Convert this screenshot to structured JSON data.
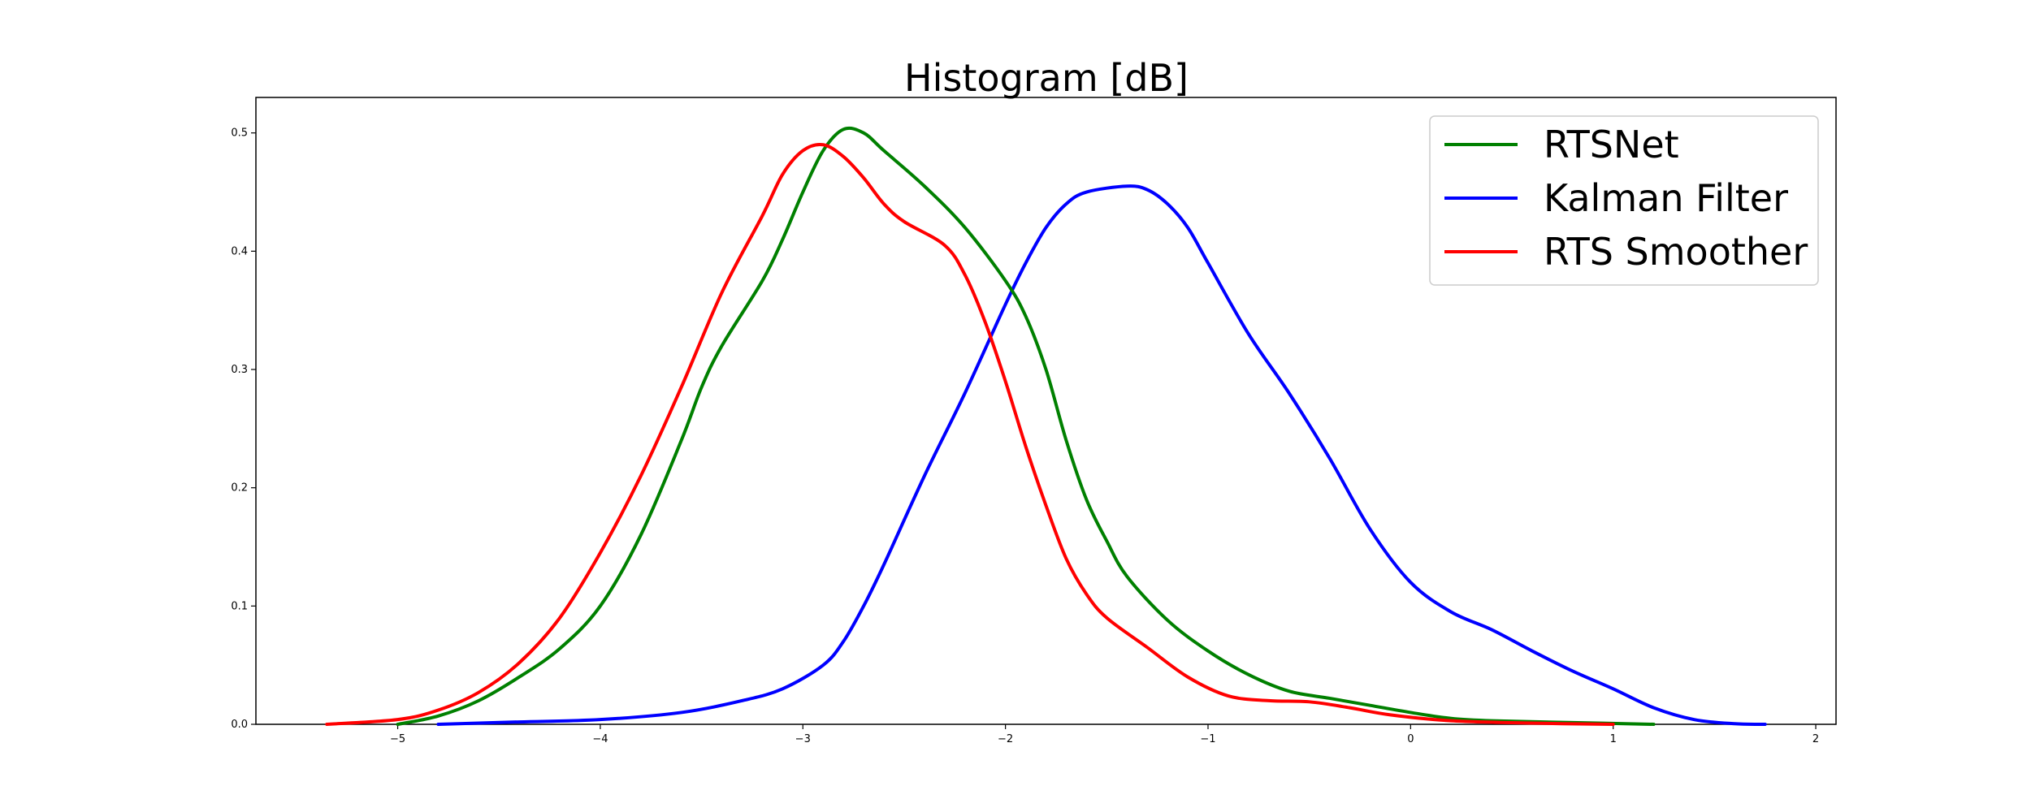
{
  "chart_data": {
    "type": "line",
    "title": "Histogram [dB]",
    "xlabel": "",
    "ylabel": "",
    "xlim": [
      -5.7,
      2.1
    ],
    "ylim": [
      0,
      0.53
    ],
    "x_ticks": [
      -5,
      -4,
      -3,
      -2,
      -1,
      0,
      1,
      2
    ],
    "x_tick_labels": [
      "−5",
      "−4",
      "−3",
      "−2",
      "−1",
      "0",
      "1",
      "2"
    ],
    "y_ticks": [
      0.0,
      0.1,
      0.2,
      0.3,
      0.4,
      0.5
    ],
    "y_tick_labels": [
      "0.0",
      "0.1",
      "0.2",
      "0.3",
      "0.4",
      "0.5"
    ],
    "grid": false,
    "legend_position": "top-right",
    "series": [
      {
        "name": "RTSNet",
        "color": "#008000",
        "points": [
          [
            -5.0,
            0.0
          ],
          [
            -4.8,
            0.007
          ],
          [
            -4.6,
            0.02
          ],
          [
            -4.4,
            0.04
          ],
          [
            -4.2,
            0.064
          ],
          [
            -4.0,
            0.1
          ],
          [
            -3.8,
            0.16
          ],
          [
            -3.6,
            0.24
          ],
          [
            -3.5,
            0.285
          ],
          [
            -3.4,
            0.32
          ],
          [
            -3.2,
            0.375
          ],
          [
            -3.1,
            0.41
          ],
          [
            -3.0,
            0.45
          ],
          [
            -2.9,
            0.485
          ],
          [
            -2.8,
            0.503
          ],
          [
            -2.7,
            0.5
          ],
          [
            -2.6,
            0.485
          ],
          [
            -2.4,
            0.455
          ],
          [
            -2.2,
            0.42
          ],
          [
            -2.0,
            0.375
          ],
          [
            -1.9,
            0.345
          ],
          [
            -1.8,
            0.3
          ],
          [
            -1.7,
            0.24
          ],
          [
            -1.6,
            0.19
          ],
          [
            -1.5,
            0.155
          ],
          [
            -1.4,
            0.125
          ],
          [
            -1.2,
            0.088
          ],
          [
            -1.0,
            0.062
          ],
          [
            -0.8,
            0.042
          ],
          [
            -0.6,
            0.028
          ],
          [
            -0.4,
            0.022
          ],
          [
            -0.2,
            0.016
          ],
          [
            0.0,
            0.01
          ],
          [
            0.2,
            0.005
          ],
          [
            0.4,
            0.003
          ],
          [
            0.8,
            0.0015
          ],
          [
            1.2,
            0.0
          ]
        ]
      },
      {
        "name": "Kalman Filter",
        "color": "#0000ff",
        "points": [
          [
            -4.8,
            0.0
          ],
          [
            -4.4,
            0.002
          ],
          [
            -4.0,
            0.004
          ],
          [
            -3.6,
            0.01
          ],
          [
            -3.3,
            0.02
          ],
          [
            -3.1,
            0.03
          ],
          [
            -2.9,
            0.05
          ],
          [
            -2.8,
            0.07
          ],
          [
            -2.7,
            0.1
          ],
          [
            -2.6,
            0.135
          ],
          [
            -2.4,
            0.21
          ],
          [
            -2.2,
            0.28
          ],
          [
            -2.0,
            0.355
          ],
          [
            -1.9,
            0.39
          ],
          [
            -1.8,
            0.42
          ],
          [
            -1.7,
            0.44
          ],
          [
            -1.6,
            0.45
          ],
          [
            -1.4,
            0.455
          ],
          [
            -1.3,
            0.452
          ],
          [
            -1.2,
            0.44
          ],
          [
            -1.1,
            0.42
          ],
          [
            -1.0,
            0.39
          ],
          [
            -0.8,
            0.33
          ],
          [
            -0.6,
            0.28
          ],
          [
            -0.4,
            0.225
          ],
          [
            -0.2,
            0.165
          ],
          [
            0.0,
            0.12
          ],
          [
            0.2,
            0.095
          ],
          [
            0.4,
            0.08
          ],
          [
            0.6,
            0.062
          ],
          [
            0.8,
            0.045
          ],
          [
            1.0,
            0.03
          ],
          [
            1.2,
            0.014
          ],
          [
            1.4,
            0.004
          ],
          [
            1.6,
            0.0005
          ],
          [
            1.75,
            0.0
          ]
        ]
      },
      {
        "name": "RTS Smoother",
        "color": "#ff0000",
        "points": [
          [
            -5.35,
            0.0
          ],
          [
            -5.0,
            0.004
          ],
          [
            -4.8,
            0.012
          ],
          [
            -4.6,
            0.027
          ],
          [
            -4.4,
            0.052
          ],
          [
            -4.2,
            0.09
          ],
          [
            -4.0,
            0.145
          ],
          [
            -3.8,
            0.21
          ],
          [
            -3.6,
            0.285
          ],
          [
            -3.4,
            0.365
          ],
          [
            -3.2,
            0.43
          ],
          [
            -3.1,
            0.465
          ],
          [
            -3.0,
            0.485
          ],
          [
            -2.9,
            0.49
          ],
          [
            -2.8,
            0.48
          ],
          [
            -2.7,
            0.462
          ],
          [
            -2.6,
            0.44
          ],
          [
            -2.5,
            0.425
          ],
          [
            -2.3,
            0.405
          ],
          [
            -2.2,
            0.38
          ],
          [
            -2.1,
            0.34
          ],
          [
            -2.0,
            0.29
          ],
          [
            -1.9,
            0.235
          ],
          [
            -1.8,
            0.185
          ],
          [
            -1.7,
            0.14
          ],
          [
            -1.6,
            0.11
          ],
          [
            -1.5,
            0.09
          ],
          [
            -1.3,
            0.065
          ],
          [
            -1.1,
            0.04
          ],
          [
            -0.9,
            0.024
          ],
          [
            -0.7,
            0.02
          ],
          [
            -0.5,
            0.019
          ],
          [
            -0.3,
            0.014
          ],
          [
            -0.1,
            0.008
          ],
          [
            0.2,
            0.003
          ],
          [
            0.6,
            0.001
          ],
          [
            1.0,
            0.0
          ]
        ]
      }
    ]
  }
}
